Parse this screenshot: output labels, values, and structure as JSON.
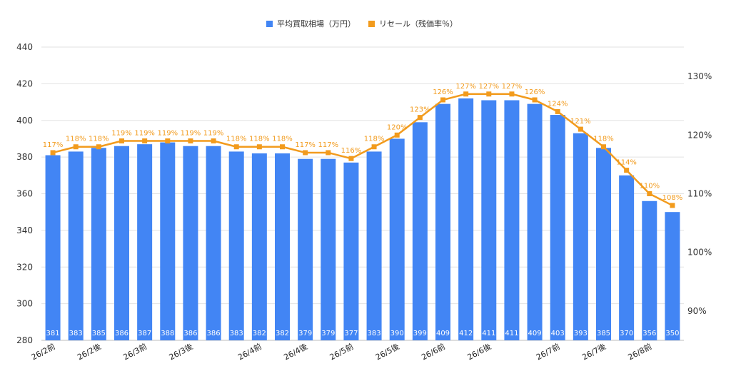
{
  "chart_data": {
    "type": "bar",
    "categories": [
      "26/2前",
      "",
      "26/2後",
      "",
      "26/3前",
      "",
      "26/3後",
      "",
      "",
      "26/4前",
      "",
      "26/4後",
      "",
      "26/5前",
      "",
      "26/5後",
      "",
      "26/6前",
      "",
      "26/6後",
      "",
      "",
      "26/7前",
      "",
      "26/7後",
      "",
      "26/8前",
      ""
    ],
    "series": [
      {
        "name": "平均買取相場（万円）",
        "type": "bar",
        "axis": "left",
        "color": "#4285f4",
        "values": [
          381,
          383,
          385,
          386,
          387,
          388,
          386,
          386,
          383,
          382,
          382,
          379,
          379,
          377,
          383,
          390,
          399,
          409,
          412,
          411,
          411,
          409,
          403,
          393,
          385,
          370,
          356,
          350
        ],
        "labels": [
          "381",
          "383",
          "385",
          "386",
          "387",
          "388",
          "386",
          "386",
          "383",
          "382",
          "382",
          "379",
          "379",
          "377",
          "383",
          "390",
          "399",
          "409",
          "412",
          "411",
          "411",
          "409",
          "403",
          "393",
          "385",
          "370",
          "356",
          "350"
        ]
      },
      {
        "name": "リセール（残価率％）",
        "type": "line",
        "axis": "right",
        "color": "#f29b1d",
        "values": [
          117,
          118,
          118,
          119,
          119,
          119,
          119,
          119,
          118,
          118,
          118,
          117,
          117,
          116,
          118,
          120,
          123,
          126,
          127,
          127,
          127,
          126,
          124,
          121,
          118,
          114,
          110,
          108
        ],
        "labels": [
          "117%",
          "118%",
          "118%",
          "119%",
          "119%",
          "119%",
          "119%",
          "119%",
          "118%",
          "118%",
          "118%",
          "117%",
          "117%",
          "116%",
          "118%",
          "120%",
          "123%",
          "126%",
          "127%",
          "127%",
          "127%",
          "126%",
          "124%",
          "121%",
          "118%",
          "114%",
          "110%",
          "108%"
        ]
      }
    ],
    "y_left": {
      "range": [
        280,
        440
      ],
      "ticks": [
        "280",
        "300",
        "320",
        "340",
        "360",
        "380",
        "400",
        "420",
        "440"
      ]
    },
    "y_right": {
      "range": [
        85,
        135
      ],
      "ticks": [
        "90%",
        "100%",
        "110%",
        "120%",
        "130%"
      ],
      "tick_values": [
        90,
        100,
        110,
        120,
        130
      ]
    },
    "legend": {
      "position": "top-center",
      "items": [
        "平均買取相場（万円）",
        "リセール（残価率％）"
      ]
    },
    "grid": true
  }
}
